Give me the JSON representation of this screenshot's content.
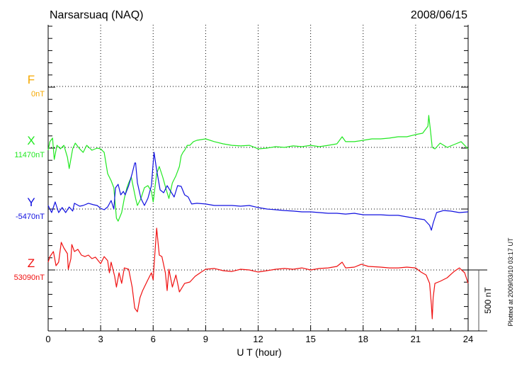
{
  "header": {
    "station": "Narsarsuaq (NAQ)",
    "date": "2008/06/15"
  },
  "footer": {
    "plotted": "Plotted at 2009/03/10 03:17 UT"
  },
  "chart_data": {
    "type": "line",
    "xlabel": "U T (hour)",
    "xlim": [
      0,
      24
    ],
    "xticks": [
      "0",
      "3",
      "6",
      "9",
      "12",
      "15",
      "18",
      "21",
      "24"
    ],
    "grid": true,
    "scale_bar": {
      "value_nT": 500,
      "label": "500 nT"
    },
    "series": [
      {
        "name": "F",
        "baseline_label": "0nT",
        "baseline_nT": 0,
        "color": "#f5a800",
        "hours": [],
        "deviation_nT": []
      },
      {
        "name": "X",
        "baseline_label": "11470nT",
        "baseline_nT": 11470,
        "color": "#22e822",
        "hours": [
          0,
          0.1,
          0.25,
          0.35,
          0.5,
          0.7,
          0.9,
          1.1,
          1.2,
          1.4,
          1.55,
          1.8,
          2.0,
          2.2,
          2.5,
          2.8,
          3.0,
          3.2,
          3.4,
          3.6,
          3.75,
          3.9,
          4.0,
          4.2,
          4.35,
          4.5,
          4.6,
          4.75,
          4.85,
          5.0,
          5.1,
          5.3,
          5.5,
          5.7,
          5.9,
          6.0,
          6.2,
          6.35,
          6.55,
          6.75,
          6.9,
          7.1,
          7.3,
          7.5,
          7.6,
          7.7,
          7.8,
          7.95,
          8.1,
          8.3,
          8.5,
          9.0,
          9.5,
          10,
          10.5,
          11,
          11.5,
          12,
          12.5,
          13,
          13.5,
          14,
          14.5,
          15,
          15.5,
          16,
          16.5,
          16.8,
          17,
          17.5,
          18,
          18.5,
          19,
          19.5,
          20,
          20.5,
          21,
          21.4,
          21.7,
          21.75,
          21.85,
          21.95,
          22.1,
          22.4,
          22.8,
          23.2,
          23.6,
          24
        ],
        "deviation_nT": [
          -23,
          47,
          76,
          -99,
          17,
          -12,
          17,
          -81,
          -174,
          -12,
          35,
          -12,
          -41,
          17,
          -23,
          -6,
          -12,
          -41,
          -215,
          -273,
          -331,
          -581,
          -605,
          -535,
          -419,
          -331,
          -291,
          -244,
          -314,
          -419,
          -477,
          -419,
          -331,
          -314,
          -360,
          -448,
          -215,
          -157,
          -244,
          -349,
          -419,
          -291,
          -233,
          -157,
          -70,
          -41,
          -23,
          17,
          17,
          47,
          58,
          70,
          47,
          29,
          17,
          12,
          17,
          -12,
          -6,
          6,
          0,
          12,
          6,
          17,
          6,
          17,
          29,
          87,
          47,
          47,
          58,
          70,
          70,
          76,
          87,
          87,
          105,
          116,
          174,
          262,
          134,
          0,
          -12,
          35,
          0,
          23,
          47,
          -12
        ]
      },
      {
        "name": "Y",
        "baseline_label": "-5470nT",
        "baseline_nT": -5470,
        "color": "#1010e0",
        "hours": [
          0,
          0.2,
          0.4,
          0.6,
          0.8,
          1.0,
          1.2,
          1.4,
          1.5,
          1.8,
          2.0,
          2.3,
          2.6,
          2.8,
          3.0,
          3.2,
          3.4,
          3.6,
          3.75,
          3.85,
          4.0,
          4.15,
          4.3,
          4.4,
          4.6,
          4.8,
          4.95,
          5.0,
          5.1,
          5.3,
          5.5,
          5.7,
          5.9,
          6.0,
          6.05,
          6.2,
          6.4,
          6.6,
          6.8,
          7.0,
          7.2,
          7.4,
          7.6,
          7.8,
          8.0,
          8.2,
          8.5,
          9,
          9.5,
          10,
          10.5,
          11,
          11.5,
          12,
          12.5,
          13,
          13.5,
          14,
          14.5,
          15,
          15.5,
          16,
          16.5,
          17,
          17.5,
          18,
          18.5,
          19,
          19.5,
          20,
          20.5,
          21,
          21.5,
          21.8,
          21.9,
          22.0,
          22.2,
          22.6,
          23,
          23.5,
          24
        ],
        "deviation_nT": [
          29,
          -29,
          58,
          -29,
          12,
          -29,
          17,
          -17,
          47,
          23,
          29,
          47,
          35,
          29,
          6,
          -6,
          17,
          70,
          0,
          174,
          203,
          116,
          145,
          116,
          192,
          291,
          378,
          378,
          215,
          87,
          29,
          87,
          192,
          378,
          465,
          320,
          157,
          134,
          192,
          145,
          99,
          192,
          186,
          116,
          99,
          41,
          47,
          41,
          29,
          29,
          29,
          23,
          29,
          12,
          0,
          -6,
          -12,
          -17,
          -23,
          -23,
          -29,
          -35,
          -35,
          -41,
          -35,
          -47,
          -47,
          -47,
          -52,
          -52,
          -64,
          -76,
          -87,
          -134,
          -174,
          -116,
          -29,
          -12,
          -17,
          -29,
          -23
        ]
      },
      {
        "name": "Z",
        "baseline_label": "53090nT",
        "baseline_nT": 53090,
        "color": "#f01010",
        "hours": [
          0,
          0.1,
          0.3,
          0.45,
          0.6,
          0.75,
          0.9,
          1.1,
          1.15,
          1.3,
          1.35,
          1.5,
          1.7,
          1.9,
          2.1,
          2.3,
          2.5,
          2.7,
          3.0,
          3.2,
          3.4,
          3.5,
          3.6,
          3.8,
          3.9,
          4.05,
          4.2,
          4.35,
          4.6,
          4.8,
          4.95,
          5.1,
          5.25,
          5.4,
          5.7,
          5.9,
          6.0,
          6.05,
          6.2,
          6.35,
          6.5,
          6.7,
          6.8,
          6.9,
          7.1,
          7.3,
          7.5,
          7.8,
          8.1,
          8.4,
          8.8,
          9.0,
          9.5,
          10,
          10.5,
          11,
          11.5,
          12,
          12.5,
          13,
          13.5,
          14,
          14.5,
          15,
          15.5,
          16,
          16.5,
          16.8,
          17,
          17.5,
          17.9,
          18.3,
          19,
          19.5,
          20,
          20.5,
          21,
          21.3,
          21.6,
          21.8,
          21.9,
          21.95,
          22.0,
          22.1,
          22.4,
          22.8,
          23.2,
          23.5,
          23.8,
          24
        ],
        "deviation_nT": [
          64,
          110,
          151,
          35,
          64,
          227,
          180,
          134,
          6,
          93,
          209,
          151,
          169,
          122,
          110,
          122,
          93,
          105,
          52,
          110,
          76,
          -23,
          64,
          -52,
          -140,
          -23,
          -110,
          17,
          6,
          -140,
          -314,
          -343,
          -227,
          -169,
          -81,
          -23,
          -81,
          35,
          343,
          122,
          110,
          -23,
          -169,
          6,
          -140,
          -41,
          -180,
          -110,
          -99,
          -52,
          -12,
          6,
          12,
          -6,
          -12,
          6,
          0,
          -17,
          -6,
          6,
          12,
          6,
          17,
          0,
          12,
          17,
          29,
          64,
          17,
          23,
          47,
          29,
          23,
          17,
          17,
          23,
          17,
          -17,
          -41,
          -110,
          -285,
          -401,
          -227,
          -110,
          -93,
          -64,
          -12,
          17,
          -23,
          -110
        ]
      }
    ]
  }
}
